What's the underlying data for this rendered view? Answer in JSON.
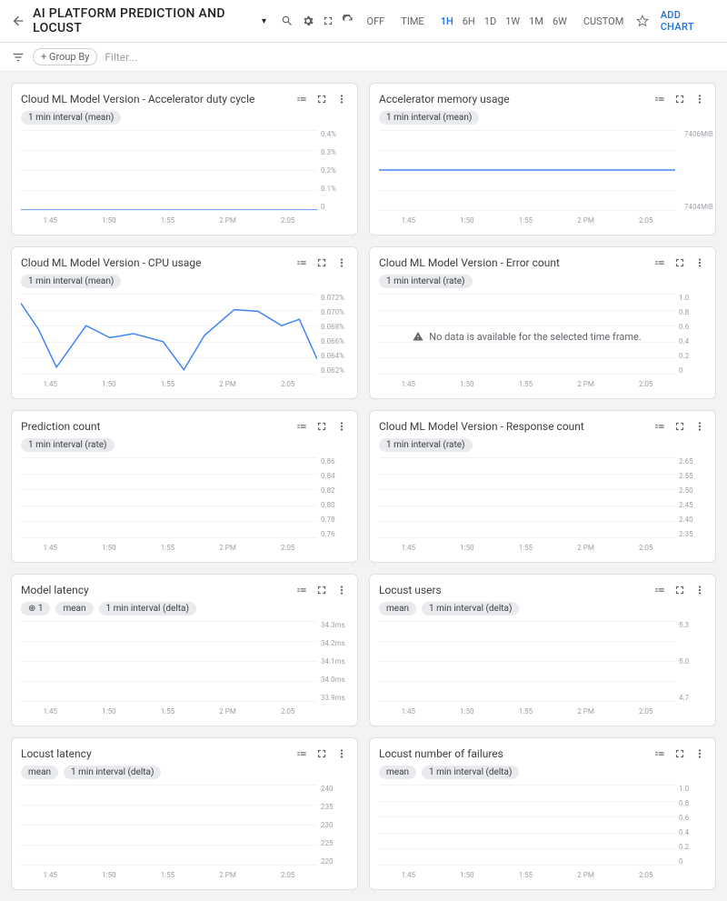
{
  "header": {
    "title": "AI PLATFORM PREDICTION AND LOCUST",
    "off_label": "OFF",
    "time_label": "TIME",
    "ranges": [
      "1H",
      "6H",
      "1D",
      "1W",
      "1M",
      "6W"
    ],
    "active_range": "1H",
    "custom_label": "CUSTOM",
    "add_chart": "ADD CHART"
  },
  "filterbar": {
    "group_by": "+ Group By",
    "filter_ph": "Filter..."
  },
  "x_ticks": [
    "1:45",
    "1:50",
    "1:55",
    "2 PM",
    "2:05"
  ],
  "colors": {
    "line": "#4285f4",
    "grid": "#f1f3f4",
    "axis_text": "#9aa0a6",
    "card_border": "#e0e0e0",
    "background": "#f1f3f4",
    "chip_bg": "#e8eaed",
    "link": "#1a73e8"
  },
  "cards": [
    {
      "id": "accel-duty",
      "title": "Cloud ML Model Version - Accelerator duty cycle",
      "chips": [
        "1 min interval (mean)"
      ],
      "y_ticks": [
        "0.4%",
        "0.3%",
        "0.2%",
        "0.1%",
        "0"
      ],
      "series": {
        "type": "line",
        "points": [
          [
            0,
            0
          ],
          [
            100,
            0
          ]
        ]
      },
      "ylim": [
        0,
        0.4
      ]
    },
    {
      "id": "accel-mem",
      "title": "Accelerator memory usage",
      "chips": [
        "1 min interval (mean)"
      ],
      "y_ticks": [
        "7406MiB",
        "",
        "",
        "",
        "7404MiB"
      ],
      "series": {
        "type": "line",
        "points": [
          [
            0,
            50
          ],
          [
            100,
            50
          ]
        ]
      },
      "ylim": [
        7404,
        7406
      ],
      "y_outside": true
    },
    {
      "id": "cpu",
      "title": "Cloud ML Model Version - CPU usage",
      "chips": [
        "1 min interval (mean)"
      ],
      "y_ticks": [
        "0.072%",
        "0.070%",
        "0.068%",
        "0.066%",
        "0.064%",
        "0.062%"
      ],
      "series": {
        "type": "line",
        "points": [
          [
            0,
            88
          ],
          [
            6,
            55
          ],
          [
            12,
            8
          ],
          [
            22,
            60
          ],
          [
            30,
            45
          ],
          [
            38,
            50
          ],
          [
            48,
            40
          ],
          [
            55,
            5
          ],
          [
            62,
            48
          ],
          [
            72,
            80
          ],
          [
            80,
            78
          ],
          [
            88,
            60
          ],
          [
            94,
            68
          ],
          [
            100,
            18
          ]
        ]
      },
      "ylim": [
        0.062,
        0.072
      ]
    },
    {
      "id": "error",
      "title": "Cloud ML Model Version - Error count",
      "chips": [
        "1 min interval (rate)"
      ],
      "y_ticks": [
        "1.0",
        "0.8",
        "0.6",
        "0.4",
        "0.2",
        "0"
      ],
      "nodata": "No data is available for the selected time frame.",
      "ylim": [
        0,
        1
      ]
    },
    {
      "id": "pred",
      "title": "Prediction count",
      "chips": [
        "1 min interval (rate)"
      ],
      "y_ticks": [
        "0.86",
        "0.84",
        "0.82",
        "0.80",
        "0.78",
        "0.76"
      ],
      "ylim": [
        0.76,
        0.86
      ]
    },
    {
      "id": "resp",
      "title": "Cloud ML Model Version - Response count",
      "chips": [
        "1 min interval (rate)"
      ],
      "y_ticks": [
        "2.65",
        "2.55",
        "2.50",
        "2.45",
        "2.40",
        "2.35"
      ],
      "ylim": [
        2.35,
        2.65
      ]
    },
    {
      "id": "modlat",
      "title": "Model latency",
      "chips": [
        "⊕ 1",
        "mean",
        "1 min interval (delta)"
      ],
      "y_ticks": [
        "34.3ms",
        "34.2ms",
        "34.1ms",
        "34.0ms",
        "33.9ms"
      ],
      "ylim": [
        33.9,
        34.3
      ]
    },
    {
      "id": "lusers",
      "title": "Locust users",
      "chips": [
        "mean",
        "1 min interval (delta)"
      ],
      "y_ticks": [
        "5.3",
        "",
        "5.0",
        "",
        "4.7"
      ],
      "ylim": [
        4.7,
        5.3
      ]
    },
    {
      "id": "llat",
      "title": "Locust latency",
      "chips": [
        "mean",
        "1 min interval (delta)"
      ],
      "y_ticks": [
        "240",
        "235",
        "230",
        "225",
        "220"
      ],
      "ylim": [
        220,
        240
      ]
    },
    {
      "id": "lfail",
      "title": "Locust number of failures",
      "chips": [
        "mean",
        "1 min interval (delta)"
      ],
      "y_ticks": [
        "1.0",
        "0.8",
        "0.6",
        "0.4",
        "0.2",
        "0"
      ],
      "ylim": [
        0,
        1
      ]
    }
  ]
}
